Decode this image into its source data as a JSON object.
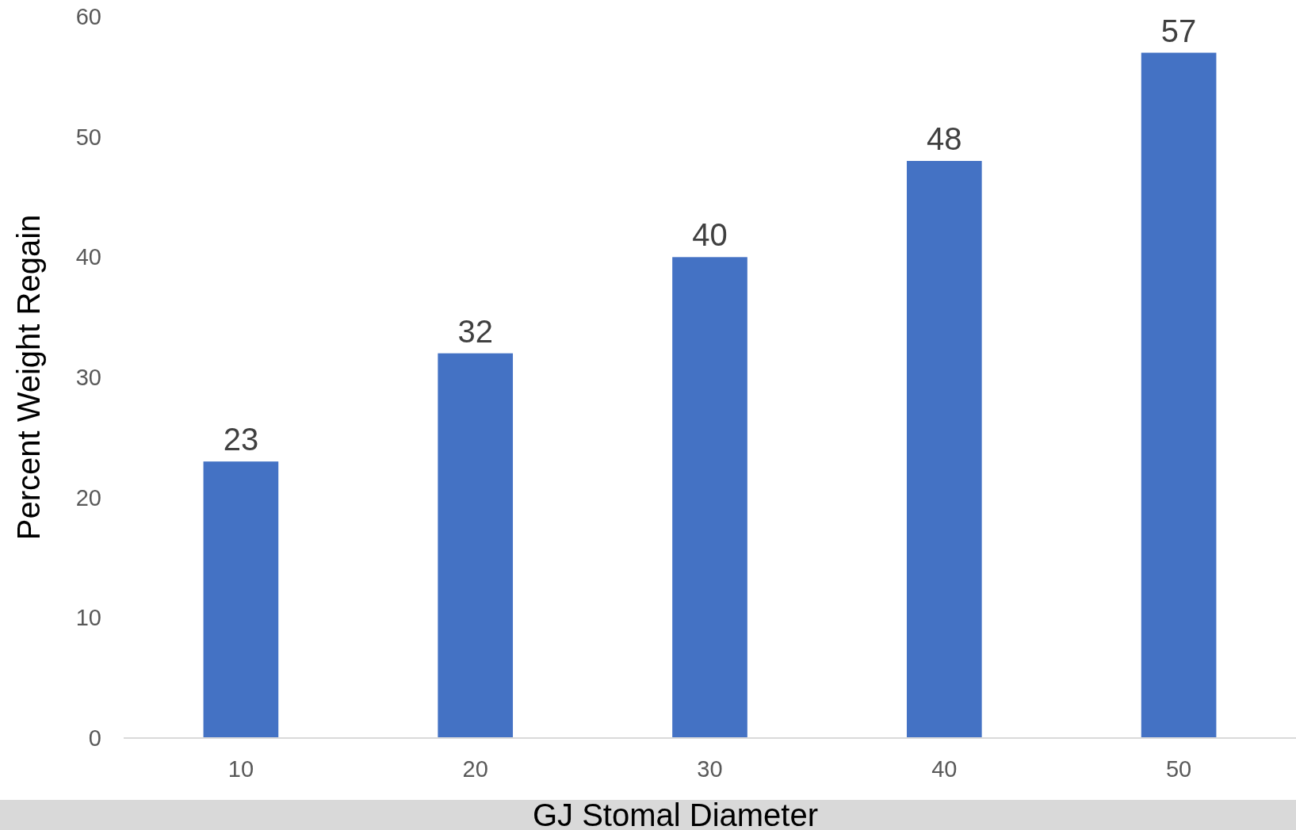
{
  "chart_data": {
    "type": "bar",
    "xlabel": "GJ Stomal Diameter",
    "ylabel": "Percent Weight Regain",
    "categories": [
      "10",
      "20",
      "30",
      "40",
      "50"
    ],
    "values": [
      23,
      32,
      40,
      48,
      57
    ],
    "color": "#4472c4",
    "ylim": [
      0,
      60
    ],
    "yticks": [
      0,
      10,
      20,
      30,
      40,
      50,
      60
    ],
    "grid": false,
    "data_labels": true
  }
}
